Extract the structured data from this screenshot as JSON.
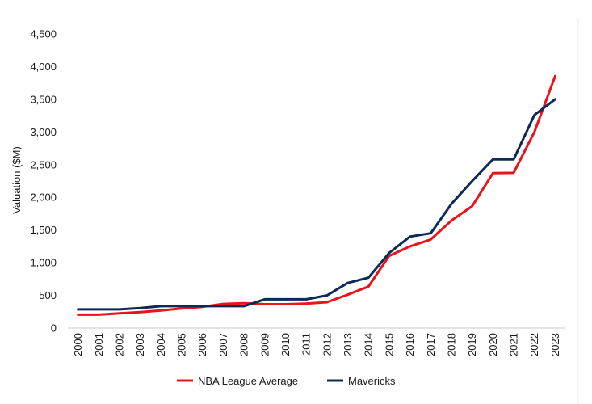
{
  "chart_data": {
    "type": "line",
    "title": "",
    "xlabel": "",
    "ylabel": "Valuation ($M)",
    "ylim": [
      0,
      4500
    ],
    "yticks": [
      "0",
      "500",
      "1,000",
      "1,500",
      "2,000",
      "2,500",
      "3,000",
      "3,500",
      "4,000",
      "4,500"
    ],
    "x": [
      "2000",
      "2001",
      "2002",
      "2003",
      "2004",
      "2005",
      "2006",
      "2007",
      "2008",
      "2009",
      "2010",
      "2011",
      "2012",
      "2013",
      "2014",
      "2015",
      "2016",
      "2017",
      "2018",
      "2019",
      "2020",
      "2021",
      "2022",
      "2023"
    ],
    "grid": false,
    "legend_position": "bottom",
    "series": [
      {
        "name": "NBA League Average",
        "color": "#e8141b",
        "values": [
          205,
          205,
          225,
          245,
          270,
          300,
          325,
          370,
          380,
          365,
          365,
          375,
          395,
          510,
          635,
          1105,
          1250,
          1355,
          1645,
          1865,
          2370,
          2375,
          3000,
          3855
        ]
      },
      {
        "name": "Mavericks",
        "color": "#0b2a55",
        "values": [
          285,
          285,
          285,
          305,
          335,
          335,
          335,
          335,
          335,
          440,
          440,
          440,
          500,
          690,
          770,
          1150,
          1400,
          1450,
          1900,
          2250,
          2580,
          2580,
          3260,
          3500
        ]
      }
    ]
  }
}
